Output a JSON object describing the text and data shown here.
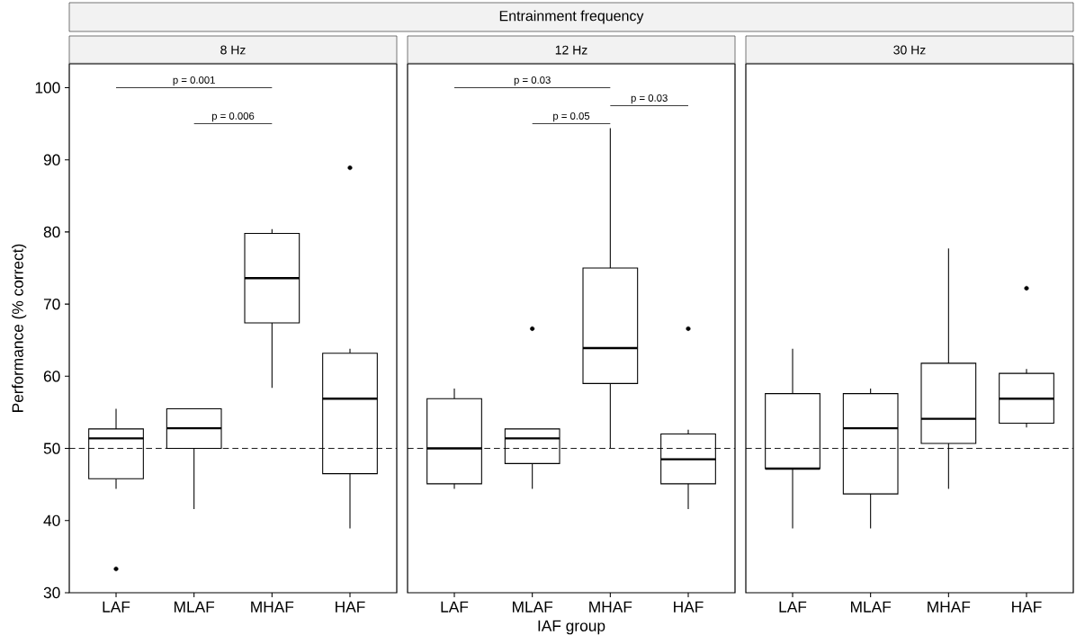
{
  "chart_data": [
    {
      "type": "box",
      "title": "8 Hz",
      "ylabel": "Performance (% correct)",
      "categories": [
        "LAF",
        "MLAF",
        "MHAF",
        "HAF"
      ],
      "ylim": [
        30,
        103.3
      ],
      "yticks": [
        30,
        40,
        50,
        60,
        70,
        80,
        90,
        100
      ],
      "boxes": [
        {
          "low": 44.4,
          "q1": 45.8,
          "median": 51.4,
          "q3": 52.7,
          "high": 55.5,
          "outliers": [
            33.3
          ]
        },
        {
          "low": 41.6,
          "q1": 50,
          "median": 52.8,
          "q3": 55.5,
          "high": 55.5
        },
        {
          "low": 58.4,
          "q1": 67.4,
          "median": 73.6,
          "q3": 79.8,
          "high": 80.4
        },
        {
          "low": 38.9,
          "q1": 46.5,
          "median": 56.9,
          "q3": 63.2,
          "high": 63.8,
          "outliers": [
            88.9
          ]
        }
      ],
      "ref_lines": [
        {
          "axis": "y",
          "value": 50,
          "line_style": "dashed"
        }
      ],
      "annotations": [
        "p = 0.001",
        "p = 0.006"
      ]
    },
    {
      "type": "box",
      "title": "12 Hz",
      "subtitle": "Entrainment frequency",
      "xlabel": "IAF group",
      "categories": [
        "LAF",
        "MLAF",
        "MHAF",
        "HAF"
      ],
      "ylim": [
        30,
        103.3
      ],
      "yticks": [
        30,
        40,
        50,
        60,
        70,
        80,
        90,
        100
      ],
      "tick_labels": "x",
      "boxes": [
        {
          "low": 44.4,
          "q1": 45.1,
          "median": 50,
          "q3": 56.9,
          "high": 58.3
        },
        {
          "low": 44.4,
          "q1": 47.9,
          "median": 51.4,
          "q3": 52.7,
          "high": 52.7,
          "outliers": [
            66.6
          ]
        },
        {
          "low": 50,
          "q1": 59,
          "median": 63.9,
          "q3": 75,
          "high": 94.4
        },
        {
          "low": 41.6,
          "q1": 45.1,
          "median": 48.5,
          "q3": 52,
          "high": 52.6,
          "outliers": [
            66.6
          ]
        }
      ],
      "ref_lines": [
        {
          "axis": "y",
          "value": 50,
          "line_style": "dashed"
        }
      ],
      "annotations": [
        "p = 0.03",
        "p = 0.05",
        "p = 0.03"
      ]
    },
    {
      "type": "box",
      "title": "30 Hz",
      "categories": [
        "LAF",
        "MLAF",
        "MHAF",
        "HAF"
      ],
      "ylim": [
        30,
        103.3
      ],
      "yticks": [
        30,
        40,
        50,
        60,
        70,
        80,
        90,
        100
      ],
      "tick_labels": "x",
      "boxes": [
        {
          "low": 38.9,
          "q1": 47.2,
          "median": 47.2,
          "q3": 57.6,
          "high": 63.8
        },
        {
          "low": 38.9,
          "q1": 43.7,
          "median": 52.8,
          "q3": 57.6,
          "high": 58.3
        },
        {
          "low": 44.4,
          "q1": 50.7,
          "median": 54.1,
          "q3": 61.8,
          "high": 77.7
        },
        {
          "low": 52.9,
          "q1": 53.5,
          "median": 56.9,
          "q3": 60.4,
          "high": 61,
          "outliers": [
            72.2
          ]
        }
      ],
      "ref_lines": [
        {
          "axis": "y",
          "value": 50,
          "line_style": "dashed"
        }
      ]
    }
  ]
}
